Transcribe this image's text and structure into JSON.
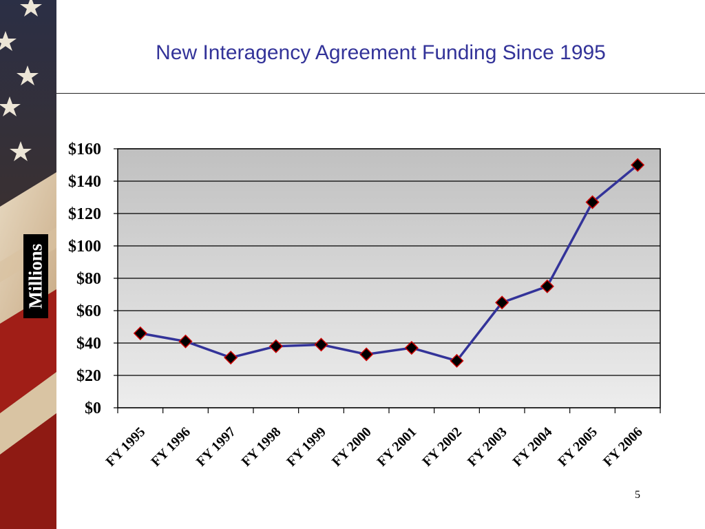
{
  "slide": {
    "title": "New Interagency Agreement Funding Since 1995",
    "page_number": "5"
  },
  "colors": {
    "title": "#333399",
    "line": "#333399",
    "marker_fill": "#000000",
    "marker_stroke": "#cc0000",
    "plot_top": "#c0c0c0",
    "plot_bottom": "#ededed"
  },
  "chart_data": {
    "type": "line",
    "title": "",
    "xlabel": "",
    "ylabel": "Millions",
    "ylim": [
      0,
      160
    ],
    "yticks": [
      "$0",
      "$20",
      "$40",
      "$60",
      "$80",
      "$100",
      "$120",
      "$140",
      "$160"
    ],
    "grid": true,
    "categories": [
      "FY 1995",
      "FY 1996",
      "FY 1997",
      "FY 1998",
      "FY 1999",
      "FY 2000",
      "FY 2001",
      "FY 2002",
      "FY 2003",
      "FY 2004",
      "FY 2005",
      "FY 2006"
    ],
    "series": [
      {
        "values": [
          46,
          41,
          31,
          38,
          39,
          33,
          37,
          29,
          65,
          75,
          127,
          150
        ]
      }
    ]
  }
}
